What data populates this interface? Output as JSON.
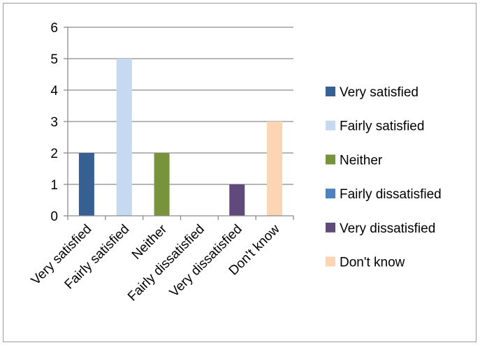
{
  "chart_data": {
    "type": "bar",
    "categories": [
      "Very satisfied",
      "Fairly satisfied",
      "Neither",
      "Fairly dissatisfied",
      "Very dissatisfied",
      "Don't know"
    ],
    "series": [
      {
        "name": "Very satisfied",
        "color": "#376092",
        "values": [
          2,
          null,
          null,
          null,
          null,
          null
        ]
      },
      {
        "name": "Fairly satisfied",
        "color": "#c6d9f1",
        "values": [
          null,
          5,
          null,
          null,
          null,
          null
        ]
      },
      {
        "name": "Neither",
        "color": "#77933c",
        "values": [
          null,
          null,
          2,
          null,
          null,
          null
        ]
      },
      {
        "name": "Fairly dissatisfied",
        "color": "#4f81bd",
        "values": [
          null,
          null,
          null,
          0,
          null,
          null
        ]
      },
      {
        "name": "Very dissatisfied",
        "color": "#604a7b",
        "values": [
          null,
          null,
          null,
          null,
          1,
          null
        ]
      },
      {
        "name": "Don't know",
        "color": "#fcd5b5",
        "values": [
          null,
          null,
          null,
          null,
          null,
          3
        ]
      }
    ],
    "y_ticks": [
      "0",
      "1",
      "2",
      "3",
      "4",
      "5",
      "6"
    ],
    "ylim": [
      0,
      6
    ],
    "grid": true,
    "legend_position": "right"
  }
}
